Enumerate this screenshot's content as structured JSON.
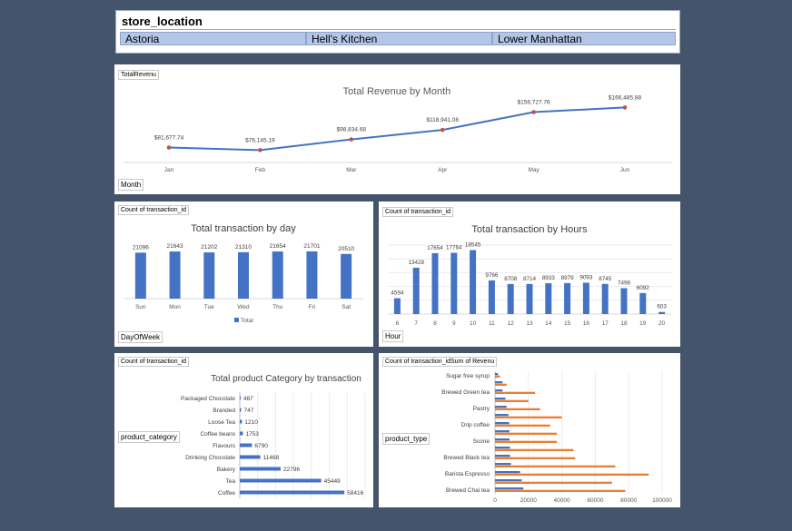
{
  "slicer": {
    "title": "store_location",
    "items": [
      "Astoria",
      "Hell's Kitchen",
      "Lower Manhattan"
    ]
  },
  "revenue_panel": {
    "field_tag": "TotalRevenu",
    "axis_tag": "Month"
  },
  "day_panel": {
    "field_tag": "Count of transaction_id",
    "axis_tag": "DayOfWeek",
    "legend": "Total"
  },
  "hour_panel": {
    "field_tag": "Count of transaction_id",
    "axis_tag": "Hour"
  },
  "category_panel": {
    "field_tag": "Count of transaction_id",
    "axis_tag": "product_category"
  },
  "type_panel": {
    "field_tag": "Count of transaction_idSum of Revenu",
    "axis_tag": "product_type"
  },
  "colors": {
    "bar": "#4472c4",
    "line": "#4472c4",
    "marker": "#c0504d",
    "orange": "#ed7d31"
  },
  "chart_data": [
    {
      "type": "line",
      "title": "Total Revenue by Month",
      "categories": [
        "Jan",
        "Feb",
        "Mar",
        "Apr",
        "May",
        "Jun"
      ],
      "values": [
        81677.74,
        76145.19,
        98834.68,
        118941.08,
        156727.76,
        166485.88
      ],
      "labels": [
        "$81,677.74",
        "$76,145.19",
        "$98,834.68",
        "$118,941.08",
        "$156,727.76",
        "$166,485.88"
      ],
      "ylim": [
        50000,
        200000
      ],
      "grid": false
    },
    {
      "type": "bar",
      "title": "Total transaction by day",
      "categories": [
        "Sun",
        "Mon",
        "Tue",
        "Wed",
        "Thu",
        "Fri",
        "Sat"
      ],
      "values": [
        21096,
        21643,
        21202,
        21310,
        21654,
        21701,
        20510
      ],
      "ylim": [
        0,
        25000
      ],
      "legend": "bottom"
    },
    {
      "type": "bar",
      "title": "Total transaction by Hours",
      "categories": [
        "6",
        "7",
        "8",
        "9",
        "10",
        "11",
        "12",
        "13",
        "14",
        "15",
        "16",
        "17",
        "18",
        "19",
        "20"
      ],
      "values": [
        4594,
        13428,
        17654,
        17764,
        18545,
        9766,
        8708,
        8714,
        8933,
        8979,
        9093,
        8745,
        7498,
        6092,
        603
      ],
      "ylim": [
        0,
        20000
      ],
      "grid": true
    },
    {
      "type": "bar",
      "orientation": "horizontal",
      "title": "Total product Category by transaction",
      "categories": [
        "Packaged Chocolate",
        "Branded",
        "Loose Tea",
        "Coffee beans",
        "Flavours",
        "Drinking Chocolate",
        "Bakery",
        "Tea",
        "Coffee"
      ],
      "values": [
        487,
        747,
        1210,
        1753,
        6790,
        11468,
        22796,
        45449,
        58416
      ],
      "xlim": [
        0,
        70000
      ],
      "grid": true
    },
    {
      "type": "bar",
      "orientation": "horizontal",
      "title": "",
      "categories": [
        "Sugar free syrup",
        "",
        "Brewed Green tea",
        "",
        "Pastry",
        "",
        "Drip coffee",
        "",
        "Scone",
        "",
        "Brewed Black tea",
        "",
        "Barista Espresso",
        "",
        "Brewed Chai tea"
      ],
      "series": [
        {
          "values": [
            1800,
            4500,
            4500,
            6200,
            6900,
            8000,
            8500,
            8600,
            8700,
            9000,
            9000,
            9500,
            15000,
            16000,
            17000
          ]
        },
        {
          "values": [
            3000,
            7000,
            24000,
            20000,
            27000,
            40000,
            33000,
            37000,
            37000,
            47000,
            48000,
            72000,
            92000,
            70000,
            78000
          ]
        }
      ],
      "xticks": [
        "0",
        "20000",
        "40000",
        "60000",
        "80000",
        "100000"
      ],
      "xlim": [
        0,
        100000
      ],
      "grid": true
    }
  ]
}
